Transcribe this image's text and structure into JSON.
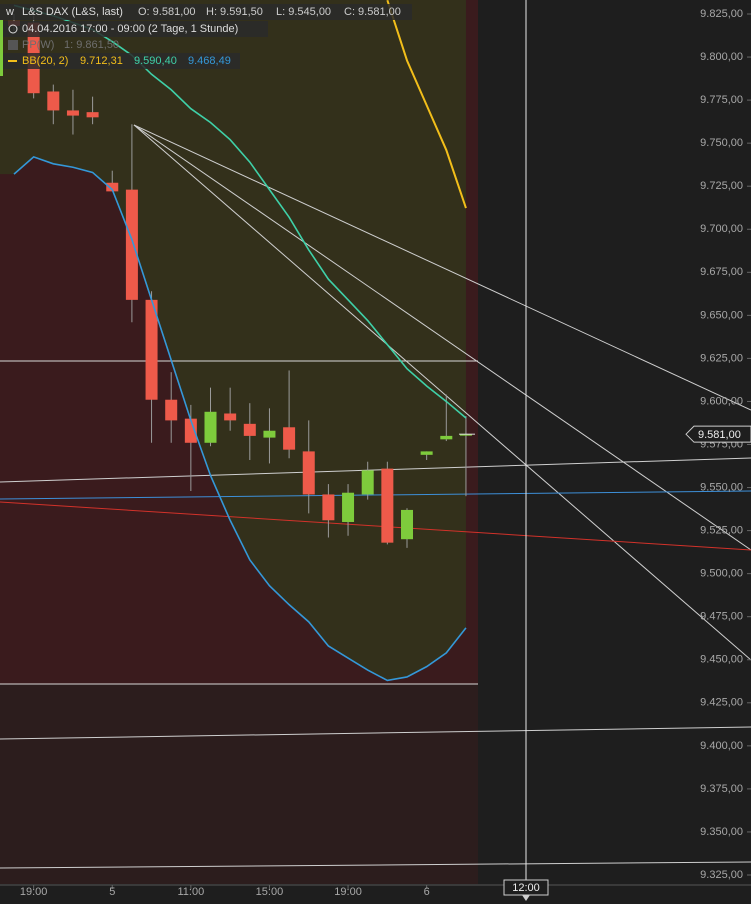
{
  "chart_data": {
    "type": "candlestick",
    "header": {
      "title": "L&S DAX (L&S, last)",
      "ohlc": [
        "O: 9.581,00",
        "H: 9.591,50",
        "L: 9.545,00",
        "C: 9.581,00"
      ],
      "period": "04.04.2016 17:00 - 09:00 (2 Tage, 1 Stunde)",
      "pivot_name": "PP(W)",
      "pivot_value": "1: 9.861,50",
      "bb_name": "BB(20, 2)",
      "bb_values": [
        "9.712,31",
        "9.590,40",
        "9.468,49"
      ]
    },
    "categories": [
      null,
      "19:00",
      null,
      null,
      null,
      "5",
      null,
      null,
      null,
      "11:00",
      null,
      null,
      null,
      "15:00",
      null,
      null,
      null,
      "19:00",
      null,
      null,
      null,
      "6",
      null,
      null
    ],
    "open": [
      9821,
      9820,
      9780,
      9769,
      9768,
      9727,
      9723,
      9659,
      9601,
      9590,
      9576,
      9593,
      9587,
      9579,
      9585,
      9571,
      9546,
      9530,
      9546,
      9561,
      9520,
      9569,
      9578,
      9581
    ],
    "high": [
      9825,
      9824,
      9784,
      9781,
      9777,
      9734,
      9761,
      9664,
      9617,
      9598,
      9608,
      9608,
      9599,
      9596,
      9618,
      9589,
      9552,
      9552,
      9565,
      9565,
      9538,
      9571,
      9604,
      9591.5
    ],
    "low": [
      9815,
      9776,
      9761,
      9755,
      9761,
      9722,
      9646,
      9576,
      9576,
      9548,
      9574,
      9583,
      9566,
      9564,
      9567,
      9535,
      9521,
      9522,
      9543,
      9517,
      9515,
      9566,
      9577,
      9545
    ],
    "close": [
      9818,
      9779,
      9769,
      9766,
      9765,
      9722,
      9659,
      9601,
      9589,
      9576,
      9594,
      9589,
      9580,
      9583,
      9572,
      9546,
      9531,
      9547,
      9560,
      9518,
      9537,
      9571,
      9580,
      9581
    ],
    "up_color": "#7ecb3c",
    "down_color": "#ee5a4a",
    "bands": [
      {
        "color": "#f2be1a",
        "values": [
          null,
          null,
          null,
          null,
          null,
          null,
          null,
          null,
          null,
          null,
          null,
          null,
          null,
          null,
          null,
          null,
          null,
          null,
          null,
          9833,
          9798,
          9772,
          9746,
          9712.31
        ]
      },
      {
        "color": "#3fd0a8",
        "values": [
          9830,
          9827,
          9824,
          9820,
          9816,
          9809,
          9801,
          9790,
          9781,
          9770,
          9762,
          9752,
          9739,
          9723,
          9707,
          9688,
          9671,
          9659,
          9647,
          9633,
          9619,
          9609,
          9600,
          9590.4
        ]
      },
      {
        "color": "#3498d8",
        "values": [
          9732,
          9742,
          9738,
          9736,
          9733,
          9723,
          9694,
          9659,
          9624,
          9589,
          9557,
          9531,
          9508,
          9493,
          9482,
          9472,
          9458,
          9451,
          9444,
          9438,
          9440,
          9446,
          9454,
          9468.49
        ]
      }
    ],
    "ylim": [
      9325,
      9825
    ],
    "yticks": [
      {
        "value": 9825,
        "label": "9.825,00"
      },
      {
        "value": 9800,
        "label": "9.800,00"
      },
      {
        "value": 9775,
        "label": "9.775,00"
      },
      {
        "value": 9750,
        "label": "9.750,00"
      },
      {
        "value": 9725,
        "label": "9.725,00"
      },
      {
        "value": 9700,
        "label": "9.700,00"
      },
      {
        "value": 9675,
        "label": "9.675,00"
      },
      {
        "value": 9650,
        "label": "9.650,00"
      },
      {
        "value": 9625,
        "label": "9.625,00"
      },
      {
        "value": 9600,
        "label": "9.600,00"
      },
      {
        "value": 9575,
        "label": "9.575,00"
      },
      {
        "value": 9550,
        "label": "9.550,00"
      },
      {
        "value": 9525,
        "label": "9.525,00"
      },
      {
        "value": 9500,
        "label": "9.500,00"
      },
      {
        "value": 9475,
        "label": "9.475,00"
      },
      {
        "value": 9450,
        "label": "9.450,00"
      },
      {
        "value": 9425,
        "label": "9.425,00"
      },
      {
        "value": 9400,
        "label": "9.400,00"
      },
      {
        "value": 9375,
        "label": "9.375,00"
      },
      {
        "value": 9350,
        "label": "9.350,00"
      },
      {
        "value": 9325,
        "label": "9.325,00"
      }
    ],
    "last_price": {
      "value": 9581,
      "label": "9.581,00"
    },
    "cursor_label": "12:00"
  }
}
